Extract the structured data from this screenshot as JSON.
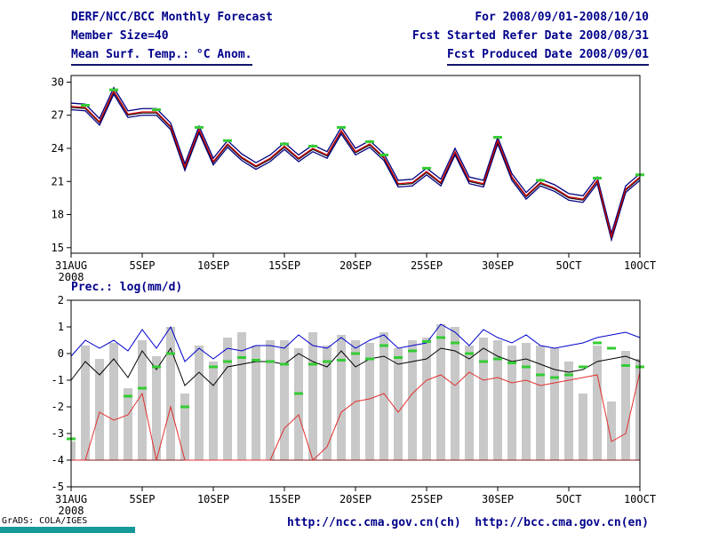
{
  "header": {
    "title": "DERF/NCC/BCC Monthly Forecast",
    "member_size": "Member Size=40",
    "variable": "Mean Surf. Temp.: °C Anom.",
    "period": "For 2008/09/01-2008/10/10",
    "refer_date": "Fcst Started Refer Date 2008/08/31",
    "produced_date": "Fcst Produced Date 2008/09/01"
  },
  "footer": {
    "url_ch": "http://ncc.cma.gov.cn(ch)",
    "url_en": "http://bcc.cma.gov.cn(en)",
    "credit": "GrADS: COLA/IGES"
  },
  "colors": {
    "annotation": "#00008b",
    "ensemble_envelope": "#000080",
    "ensemble_mean": "#d00000",
    "control": "#000000",
    "prec_upper": "#0000cd",
    "prec_median": "#000000",
    "prec_lower": "#e03030",
    "obs_mark": "#33cc33",
    "bar": "#c8c8c8",
    "baseline": "#8b1a1a"
  },
  "chart_data": [
    {
      "id": "temp",
      "type": "line",
      "title": "Mean Surf. Temp.: °C Anom.",
      "x_unit": "days from 31AUG2008",
      "xlim": [
        0,
        40
      ],
      "ylim": [
        14.5,
        30.6
      ],
      "yticks": [
        30,
        27,
        24,
        21,
        18,
        15
      ],
      "xticks": [
        {
          "x": 0,
          "label": "31AUG",
          "sub": "2008"
        },
        {
          "x": 5,
          "label": "5SEP"
        },
        {
          "x": 10,
          "label": "10SEP"
        },
        {
          "x": 15,
          "label": "15SEP"
        },
        {
          "x": 20,
          "label": "20SEP"
        },
        {
          "x": 25,
          "label": "25SEP"
        },
        {
          "x": 30,
          "label": "30SEP"
        },
        {
          "x": 35,
          "label": "5OCT"
        },
        {
          "x": 40,
          "label": "10OCT"
        }
      ],
      "series": [
        {
          "name": "ensemble-upper",
          "color": "#000080",
          "width": 1.3,
          "values": [
            28.1,
            28.0,
            26.7,
            29.5,
            27.4,
            27.6,
            27.6,
            26.3,
            22.6,
            26.0,
            23.1,
            24.7,
            23.5,
            22.7,
            23.4,
            24.5,
            23.4,
            24.3,
            23.7,
            25.9,
            24.0,
            24.7,
            23.5,
            21.1,
            21.2,
            22.2,
            21.2,
            24.0,
            21.4,
            21.1,
            25.0,
            21.7,
            20.0,
            21.2,
            20.7,
            19.9,
            19.7,
            21.4,
            16.3,
            20.6,
            21.7
          ]
        },
        {
          "name": "ensemble-lower",
          "color": "#000080",
          "width": 1.3,
          "values": [
            27.5,
            27.4,
            26.1,
            28.9,
            26.8,
            27.0,
            27.0,
            25.7,
            22.0,
            25.4,
            22.5,
            24.1,
            22.9,
            22.1,
            22.8,
            23.9,
            22.8,
            23.7,
            23.1,
            25.3,
            23.4,
            24.1,
            22.9,
            20.5,
            20.6,
            21.6,
            20.6,
            23.4,
            20.8,
            20.5,
            24.4,
            21.1,
            19.4,
            20.6,
            20.1,
            19.3,
            19.1,
            20.8,
            15.7,
            20.0,
            21.1
          ]
        },
        {
          "name": "control-member",
          "color": "#000000",
          "width": 1,
          "values": [
            27.7,
            27.6,
            26.3,
            29.1,
            27.0,
            27.2,
            27.2,
            25.9,
            22.2,
            25.6,
            22.7,
            24.3,
            23.1,
            22.3,
            23.0,
            24.1,
            23.0,
            23.9,
            23.3,
            25.5,
            23.6,
            24.3,
            23.1,
            20.7,
            20.8,
            21.8,
            20.8,
            23.6,
            21.0,
            20.7,
            24.6,
            21.3,
            19.6,
            20.8,
            20.3,
            19.5,
            19.3,
            21.0,
            15.9,
            20.2,
            21.3
          ]
        },
        {
          "name": "ensemble-mean",
          "color": "#d00000",
          "width": 1.3,
          "values": [
            27.8,
            27.7,
            26.4,
            29.2,
            27.1,
            27.3,
            27.3,
            26.0,
            22.3,
            25.7,
            22.8,
            24.4,
            23.2,
            22.4,
            23.1,
            24.2,
            23.1,
            24.0,
            23.4,
            25.6,
            23.7,
            24.4,
            23.2,
            20.8,
            20.9,
            21.9,
            20.9,
            23.7,
            21.1,
            20.8,
            24.7,
            21.4,
            19.7,
            20.9,
            20.4,
            19.6,
            19.4,
            21.1,
            16.0,
            20.3,
            21.4
          ]
        }
      ],
      "obs_marks": {
        "name": "verification-mark",
        "color": "#33cc33",
        "points": [
          [
            1,
            27.9
          ],
          [
            3,
            29.3
          ],
          [
            6,
            27.5
          ],
          [
            9,
            25.9
          ],
          [
            11,
            24.7
          ],
          [
            15,
            24.4
          ],
          [
            17,
            24.2
          ],
          [
            19,
            25.9
          ],
          [
            21,
            24.6
          ],
          [
            22,
            23.4
          ],
          [
            25,
            22.2
          ],
          [
            30,
            25.0
          ],
          [
            33,
            21.1
          ],
          [
            37,
            21.3
          ],
          [
            40,
            21.6
          ]
        ]
      }
    },
    {
      "id": "prec",
      "type": "bar+line",
      "title": "Prec.: log(mm/d)",
      "x_unit": "days from 31AUG2008",
      "xlim": [
        0,
        40
      ],
      "ylim": [
        -5,
        2
      ],
      "yticks": [
        2,
        1,
        0,
        -1,
        -2,
        -3,
        -4,
        -5
      ],
      "xticks": [
        {
          "x": 0,
          "label": "31AUG",
          "sub": "2008"
        },
        {
          "x": 5,
          "label": "5SEP"
        },
        {
          "x": 10,
          "label": "10SEP"
        },
        {
          "x": 15,
          "label": "15SEP"
        },
        {
          "x": 20,
          "label": "20SEP"
        },
        {
          "x": 25,
          "label": "25SEP"
        },
        {
          "x": 30,
          "label": "30SEP"
        },
        {
          "x": 35,
          "label": "5OCT"
        },
        {
          "x": 40,
          "label": "10OCT"
        }
      ],
      "bar_base": -4,
      "bar_color": "#c8c8c8",
      "bars": [
        -3.3,
        0.3,
        -0.2,
        0.4,
        -1.3,
        0.5,
        -0.1,
        1.0,
        -1.5,
        0.3,
        -0.3,
        0.6,
        0.8,
        0.3,
        0.5,
        0.5,
        0.2,
        0.8,
        0.3,
        0.7,
        0.5,
        0.4,
        0.8,
        0.2,
        0.5,
        0.6,
        1.1,
        1.0,
        0.3,
        0.6,
        0.5,
        0.3,
        0.4,
        0.3,
        0.2,
        -0.3,
        -1.5,
        0.3,
        -1.8,
        0.1,
        -0.2
      ],
      "baseline": {
        "y": -4,
        "color": "#8b1a1a"
      },
      "series": [
        {
          "name": "prec-upper",
          "color": "#0000cd",
          "width": 1,
          "values": [
            -0.1,
            0.5,
            0.2,
            0.5,
            0.1,
            0.9,
            0.2,
            1.0,
            -0.3,
            0.2,
            -0.2,
            0.2,
            0.1,
            0.3,
            0.3,
            0.2,
            0.7,
            0.3,
            0.2,
            0.6,
            0.2,
            0.5,
            0.7,
            0.2,
            0.3,
            0.4,
            1.1,
            0.8,
            0.3,
            0.9,
            0.6,
            0.4,
            0.7,
            0.3,
            0.2,
            0.3,
            0.4,
            0.6,
            0.7,
            0.8,
            0.6
          ]
        },
        {
          "name": "prec-median",
          "color": "#000000",
          "width": 1,
          "values": [
            -1.0,
            -0.3,
            -0.8,
            -0.2,
            -0.9,
            0.1,
            -0.6,
            0.2,
            -1.2,
            -0.7,
            -1.2,
            -0.5,
            -0.4,
            -0.3,
            -0.3,
            -0.4,
            0.0,
            -0.3,
            -0.5,
            0.1,
            -0.5,
            -0.2,
            -0.1,
            -0.4,
            -0.3,
            -0.2,
            0.2,
            0.1,
            -0.2,
            0.2,
            -0.1,
            -0.3,
            -0.2,
            -0.4,
            -0.6,
            -0.7,
            -0.6,
            -0.3,
            -0.2,
            -0.1,
            -0.3
          ]
        },
        {
          "name": "prec-lower",
          "color": "#e03030",
          "width": 1,
          "values": [
            -4,
            -4,
            -2.2,
            -2.5,
            -2.3,
            -1.5,
            -4,
            -2.0,
            -4,
            -4,
            -4,
            -4,
            -4,
            -4,
            -4,
            -2.8,
            -2.3,
            -4,
            -3.5,
            -2.2,
            -1.8,
            -1.7,
            -1.5,
            -2.2,
            -1.5,
            -1.0,
            -0.8,
            -1.2,
            -0.7,
            -1.0,
            -0.9,
            -1.1,
            -1.0,
            -1.2,
            -1.1,
            -1.0,
            -0.9,
            -0.8,
            -3.3,
            -3.0,
            -0.7
          ]
        }
      ],
      "obs_marks": {
        "name": "prec-verification-mark",
        "color": "#33cc33",
        "points": [
          [
            0,
            -3.2
          ],
          [
            4,
            -1.6
          ],
          [
            5,
            -1.3
          ],
          [
            6,
            -0.5
          ],
          [
            7,
            0.0
          ],
          [
            8,
            -2.0
          ],
          [
            10,
            -0.5
          ],
          [
            11,
            -0.3
          ],
          [
            12,
            -0.15
          ],
          [
            13,
            -0.25
          ],
          [
            14,
            -0.3
          ],
          [
            15,
            -0.4
          ],
          [
            16,
            -1.5
          ],
          [
            17,
            -0.4
          ],
          [
            18,
            -0.3
          ],
          [
            19,
            -0.25
          ],
          [
            20,
            0.0
          ],
          [
            21,
            -0.2
          ],
          [
            22,
            0.3
          ],
          [
            23,
            -0.15
          ],
          [
            24,
            0.1
          ],
          [
            25,
            0.45
          ],
          [
            26,
            0.6
          ],
          [
            27,
            0.4
          ],
          [
            28,
            0.0
          ],
          [
            29,
            -0.3
          ],
          [
            30,
            -0.2
          ],
          [
            31,
            -0.35
          ],
          [
            32,
            -0.5
          ],
          [
            33,
            -0.8
          ],
          [
            34,
            -0.9
          ],
          [
            35,
            -0.8
          ],
          [
            36,
            -0.5
          ],
          [
            37,
            0.4
          ],
          [
            38,
            0.2
          ],
          [
            39,
            -0.45
          ],
          [
            40,
            -0.5
          ]
        ]
      }
    }
  ]
}
